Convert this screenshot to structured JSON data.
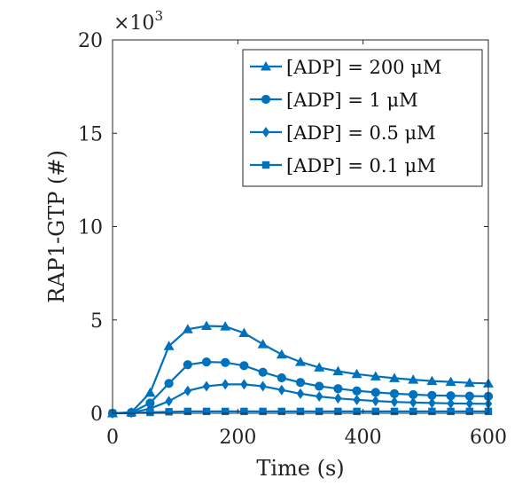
{
  "chart_data": {
    "type": "line",
    "xlabel": "Time (s)",
    "ylabel": "RAP1-GTP (#)",
    "y_multiplier": "×10",
    "y_multiplier_exp": "3",
    "xlim": [
      0,
      600
    ],
    "ylim": [
      0,
      20
    ],
    "x_ticks": [
      "0",
      "200",
      "400",
      "600"
    ],
    "y_ticks": [
      "0",
      "5",
      "10",
      "15",
      "20"
    ],
    "grid": false,
    "legend_position": "top-right",
    "color": "#0072BD",
    "x": [
      0,
      30,
      60,
      90,
      120,
      150,
      180,
      210,
      240,
      270,
      300,
      330,
      360,
      390,
      420,
      450,
      480,
      510,
      540,
      570,
      600
    ],
    "series": [
      {
        "name": "[ADP] = 200 μM",
        "marker": "triangle",
        "values": [
          0.0,
          0.05,
          1.1,
          3.6,
          4.5,
          4.68,
          4.65,
          4.3,
          3.7,
          3.15,
          2.75,
          2.45,
          2.25,
          2.1,
          1.98,
          1.88,
          1.8,
          1.73,
          1.68,
          1.63,
          1.6
        ]
      },
      {
        "name": "[ADP] = 1 μM",
        "marker": "circle",
        "values": [
          0.0,
          0.04,
          0.55,
          1.6,
          2.6,
          2.75,
          2.72,
          2.55,
          2.2,
          1.9,
          1.65,
          1.45,
          1.32,
          1.2,
          1.12,
          1.05,
          1.0,
          0.96,
          0.94,
          0.92,
          0.91
        ]
      },
      {
        "name": "[ADP] = 0.5 μM",
        "marker": "diamond",
        "values": [
          0.0,
          0.03,
          0.25,
          0.65,
          1.2,
          1.45,
          1.55,
          1.55,
          1.45,
          1.25,
          1.05,
          0.9,
          0.8,
          0.72,
          0.66,
          0.61,
          0.58,
          0.55,
          0.53,
          0.52,
          0.51
        ]
      },
      {
        "name": "[ADP] = 0.1 μM",
        "marker": "square",
        "values": [
          0.0,
          0.01,
          0.05,
          0.08,
          0.1,
          0.1,
          0.1,
          0.1,
          0.1,
          0.1,
          0.1,
          0.1,
          0.1,
          0.1,
          0.1,
          0.1,
          0.1,
          0.1,
          0.1,
          0.1,
          0.1
        ]
      }
    ]
  }
}
